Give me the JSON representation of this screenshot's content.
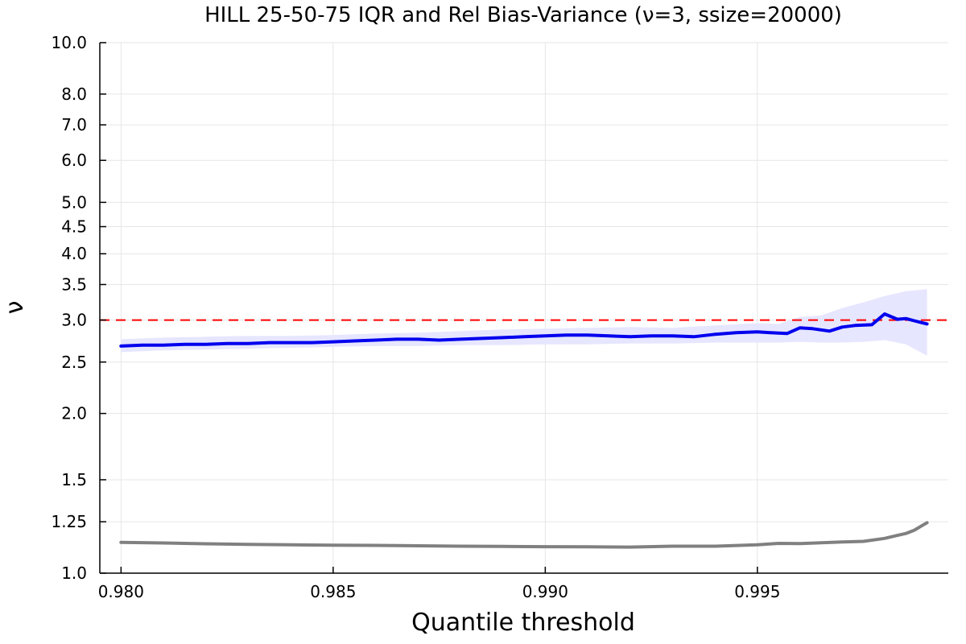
{
  "chart_data": {
    "type": "line",
    "title": "HILL 25-50-75 IQR and Rel Bias-Variance (ν=3, ssize=20000)",
    "xlabel": "Quantile threshold",
    "ylabel": "ν",
    "xlim": [
      0.9795,
      0.9995
    ],
    "ylim": [
      1.0,
      10.0
    ],
    "yscale": "log",
    "grid": true,
    "xticks": [
      0.98,
      0.985,
      0.99,
      0.995
    ],
    "xtick_labels": [
      "0.980",
      "0.985",
      "0.990",
      "0.995"
    ],
    "yticks": [
      1.0,
      1.25,
      1.5,
      2.0,
      2.5,
      3.0,
      3.5,
      4.0,
      4.5,
      5.0,
      6.0,
      7.0,
      8.0,
      10.0
    ],
    "ytick_labels": [
      "1.0",
      "1.25",
      "1.5",
      "2.0",
      "2.5",
      "3.0",
      "3.5",
      "4.0",
      "4.5",
      "5.0",
      "6.0",
      "7.0",
      "8.0",
      "10.0"
    ],
    "reference_line": {
      "y": 3.0,
      "color": "#ff0000",
      "style": "dashed"
    },
    "series": [
      {
        "role": "iqr-band",
        "color": "#e6e6ff",
        "x": [
          0.98,
          0.981,
          0.982,
          0.983,
          0.984,
          0.985,
          0.986,
          0.987,
          0.988,
          0.989,
          0.99,
          0.991,
          0.992,
          0.993,
          0.994,
          0.995,
          0.9955,
          0.996,
          0.9965,
          0.997,
          0.9975,
          0.998,
          0.9985,
          0.999
        ],
        "lower": [
          2.61,
          2.63,
          2.64,
          2.65,
          2.66,
          2.67,
          2.68,
          2.68,
          2.69,
          2.69,
          2.7,
          2.7,
          2.71,
          2.71,
          2.72,
          2.72,
          2.72,
          2.73,
          2.72,
          2.72,
          2.73,
          2.75,
          2.7,
          2.57
        ],
        "upper": [
          2.76,
          2.78,
          2.79,
          2.8,
          2.8,
          2.81,
          2.83,
          2.84,
          2.86,
          2.88,
          2.89,
          2.9,
          2.91,
          2.9,
          2.93,
          2.96,
          2.95,
          3.04,
          3.06,
          3.16,
          3.24,
          3.33,
          3.4,
          3.43
        ]
      },
      {
        "role": "median",
        "color": "#0000ee",
        "x": [
          0.98,
          0.9805,
          0.981,
          0.9815,
          0.982,
          0.9825,
          0.983,
          0.9835,
          0.984,
          0.9845,
          0.985,
          0.9855,
          0.986,
          0.9865,
          0.987,
          0.9875,
          0.988,
          0.9885,
          0.989,
          0.9895,
          0.99,
          0.9905,
          0.991,
          0.9915,
          0.992,
          0.9925,
          0.993,
          0.9935,
          0.994,
          0.9945,
          0.995,
          0.9953,
          0.9957,
          0.996,
          0.9963,
          0.9967,
          0.997,
          0.9973,
          0.9977,
          0.998,
          0.9983,
          0.9985,
          0.9987,
          0.999
        ],
        "values": [
          2.68,
          2.69,
          2.69,
          2.7,
          2.7,
          2.71,
          2.71,
          2.72,
          2.72,
          2.72,
          2.73,
          2.74,
          2.75,
          2.76,
          2.76,
          2.75,
          2.76,
          2.77,
          2.78,
          2.79,
          2.8,
          2.81,
          2.81,
          2.8,
          2.79,
          2.8,
          2.8,
          2.79,
          2.82,
          2.84,
          2.85,
          2.84,
          2.83,
          2.9,
          2.89,
          2.86,
          2.91,
          2.93,
          2.94,
          3.08,
          3.01,
          3.02,
          2.99,
          2.95
        ]
      },
      {
        "role": "rel-bias-variance",
        "color": "#808080",
        "x": [
          0.98,
          0.981,
          0.982,
          0.983,
          0.984,
          0.985,
          0.986,
          0.987,
          0.988,
          0.989,
          0.99,
          0.991,
          0.992,
          0.993,
          0.994,
          0.995,
          0.9955,
          0.996,
          0.9965,
          0.997,
          0.9975,
          0.998,
          0.9983,
          0.9985,
          0.9987,
          0.999
        ],
        "values": [
          1.143,
          1.14,
          1.136,
          1.133,
          1.131,
          1.129,
          1.128,
          1.126,
          1.124,
          1.123,
          1.122,
          1.121,
          1.12,
          1.124,
          1.124,
          1.131,
          1.138,
          1.137,
          1.141,
          1.145,
          1.148,
          1.163,
          1.178,
          1.188,
          1.205,
          1.245
        ]
      }
    ]
  }
}
